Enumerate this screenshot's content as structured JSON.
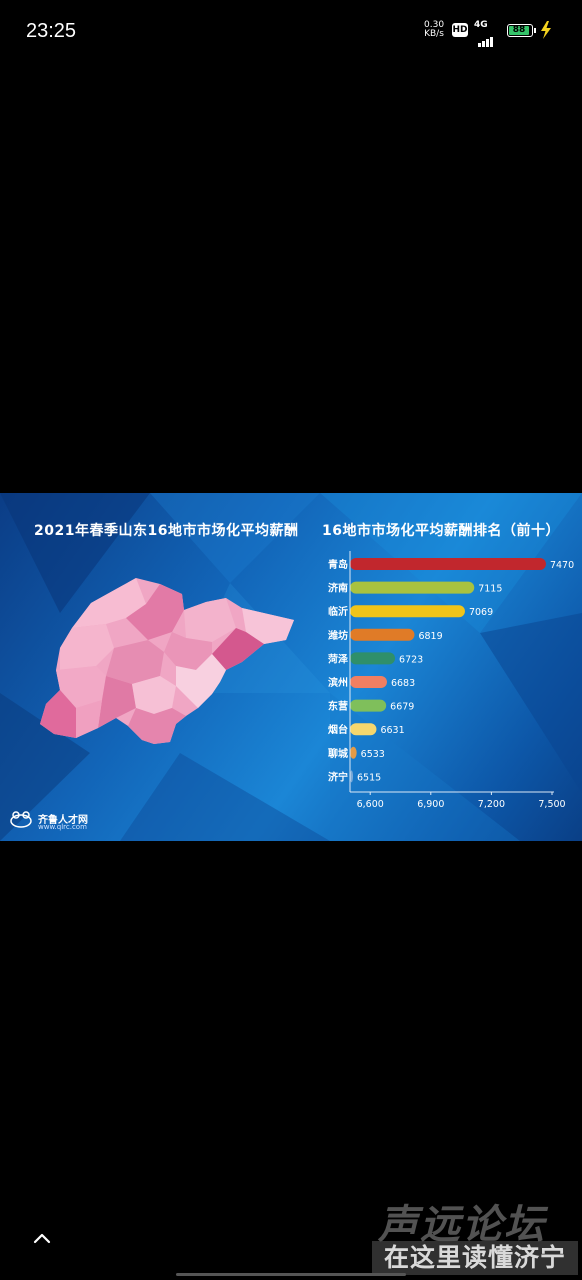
{
  "status_bar": {
    "time": "23:25",
    "net_speed": "0.30",
    "net_unit": "KB/s",
    "hd": "HD",
    "network": "4G",
    "battery": "88"
  },
  "infographic": {
    "left_title": "2021年春季山东16地市市场化平均薪酬",
    "right_title": "16地市市场化平均薪酬排名（前十）",
    "logo_name": "齐鲁人才网",
    "logo_url": "www.qlrc.com"
  },
  "chart_data": {
    "type": "bar",
    "orientation": "horizontal",
    "title": "16地市市场化平均薪酬排名（前十）",
    "categories": [
      "青岛",
      "济南",
      "临沂",
      "潍坊",
      "菏泽",
      "滨州",
      "东营",
      "烟台",
      "聊城",
      "济宁"
    ],
    "values": [
      7470,
      7115,
      7069,
      6819,
      6723,
      6683,
      6679,
      6631,
      6533,
      6515
    ],
    "colors": [
      "#c1272d",
      "#a9c23f",
      "#f0c419",
      "#e07b27",
      "#2f8f6a",
      "#f07f62",
      "#7fbf5b",
      "#f5d76e",
      "#e39b46",
      "#7aaad8"
    ],
    "xlim": [
      6500,
      7500
    ],
    "xticks": [
      "6,600",
      "6,900",
      "7,200",
      "7,500"
    ],
    "xtick_values": [
      6600,
      6900,
      7200,
      7500
    ],
    "grid": false,
    "legend": "none"
  },
  "watermark": {
    "line1": "声远论坛",
    "line2": "在这里读懂济宁"
  }
}
